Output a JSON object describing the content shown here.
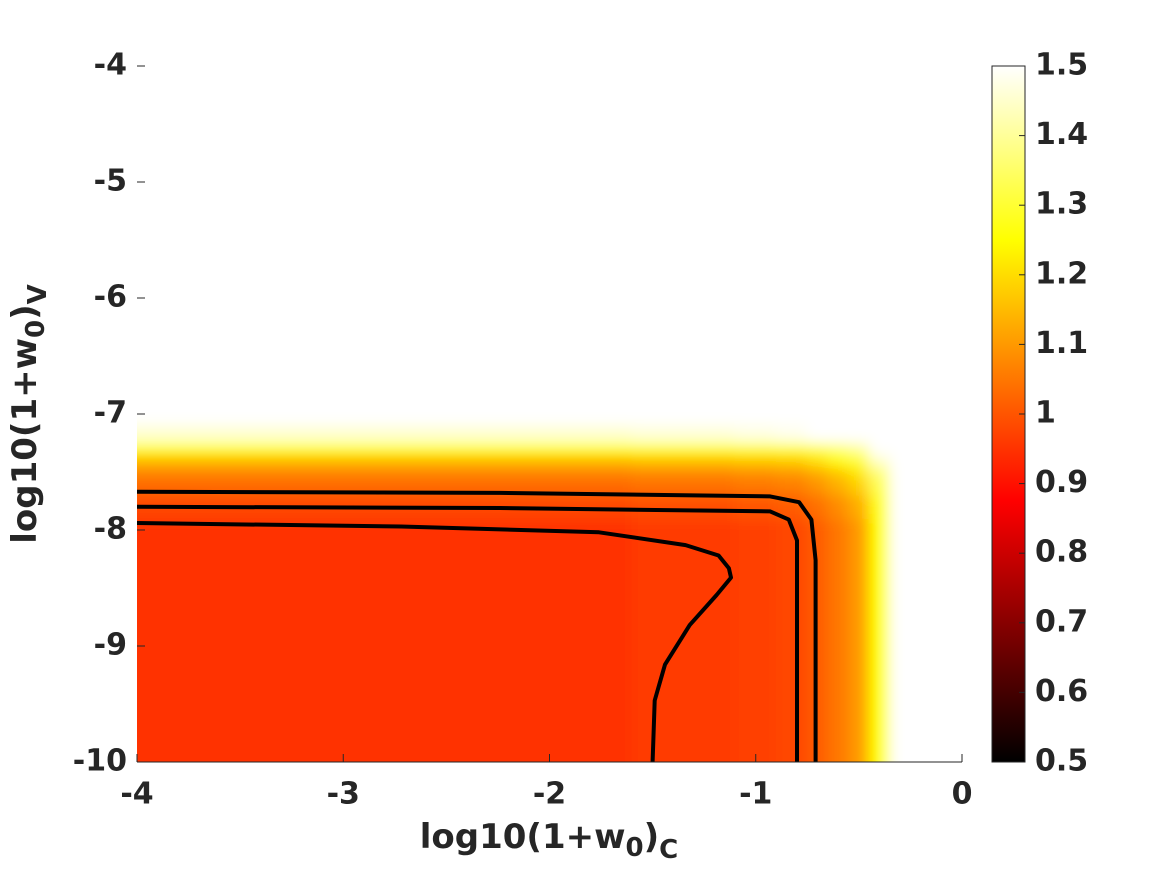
{
  "chart_data": {
    "type": "heatmap-contour",
    "xlabel": [
      "log10(1+w",
      "0",
      ")",
      "C"
    ],
    "ylabel": [
      "log10(1+w",
      "0",
      ")",
      "V"
    ],
    "xlim": [
      -4,
      0
    ],
    "xticks": [
      -4,
      -3,
      -2,
      -1,
      0
    ],
    "ylim": [
      -10,
      -4
    ],
    "yticks": [
      -10,
      -9,
      -8,
      -7,
      -6,
      -5,
      -4
    ],
    "colormap": "hot",
    "colorbar": {
      "lim": [
        0.5,
        1.5
      ],
      "ticks": [
        0.5,
        0.6,
        0.7,
        0.8,
        0.9,
        1,
        1.1,
        1.2,
        1.3,
        1.4,
        1.5
      ]
    },
    "field": {
      "x": [
        -4,
        -2,
        -1.2,
        -1,
        -0.8,
        -0.7,
        -0.6,
        -0.5,
        -0.4,
        -0.3,
        -0.2,
        0
      ],
      "y": [
        -10,
        -9,
        -8.5,
        -8,
        -7.8,
        -7.6,
        -7.5,
        -7.4,
        -7.3,
        -7.2,
        -7,
        -4
      ],
      "z": [
        [
          0.95,
          0.95,
          0.96,
          0.97,
          0.98,
          1.01,
          1.05,
          1.1,
          1.25,
          1.5,
          1.5,
          1.5
        ],
        [
          0.95,
          0.95,
          0.96,
          0.97,
          0.98,
          1.01,
          1.05,
          1.1,
          1.25,
          1.5,
          1.5,
          1.5
        ],
        [
          0.95,
          0.95,
          0.96,
          0.97,
          0.98,
          1.01,
          1.05,
          1.1,
          1.25,
          1.5,
          1.5,
          1.5
        ],
        [
          0.95,
          0.95,
          0.96,
          0.97,
          0.98,
          1.01,
          1.05,
          1.1,
          1.25,
          1.5,
          1.5,
          1.5
        ],
        [
          0.98,
          0.98,
          0.99,
          1.0,
          1.01,
          1.04,
          1.08,
          1.13,
          1.28,
          1.5,
          1.5,
          1.5
        ],
        [
          1.03,
          1.03,
          1.04,
          1.05,
          1.06,
          1.09,
          1.13,
          1.18,
          1.33,
          1.5,
          1.5,
          1.5
        ],
        [
          1.07,
          1.07,
          1.08,
          1.09,
          1.1,
          1.13,
          1.17,
          1.22,
          1.37,
          1.5,
          1.5,
          1.5
        ],
        [
          1.15,
          1.15,
          1.16,
          1.17,
          1.18,
          1.21,
          1.25,
          1.3,
          1.45,
          1.5,
          1.5,
          1.5
        ],
        [
          1.25,
          1.25,
          1.26,
          1.27,
          1.28,
          1.31,
          1.35,
          1.4,
          1.5,
          1.5,
          1.5,
          1.5
        ],
        [
          1.45,
          1.45,
          1.46,
          1.47,
          1.48,
          1.5,
          1.5,
          1.5,
          1.5,
          1.5,
          1.5,
          1.5
        ],
        [
          1.5,
          1.5,
          1.5,
          1.5,
          1.5,
          1.5,
          1.5,
          1.5,
          1.5,
          1.5,
          1.5,
          1.5
        ],
        [
          1.5,
          1.5,
          1.5,
          1.5,
          1.5,
          1.5,
          1.5,
          1.5,
          1.5,
          1.5,
          1.5,
          1.5
        ]
      ]
    },
    "contour_color": "#000000",
    "contours": [
      {
        "x": [
          -4,
          -2.24,
          -0.93,
          -0.79,
          -0.73,
          -0.71,
          -0.71
        ],
        "y": [
          -7.67,
          -7.68,
          -7.71,
          -7.76,
          -7.91,
          -8.26,
          -10
        ]
      },
      {
        "x": [
          -4,
          -2.24,
          -0.93,
          -0.84,
          -0.8,
          -0.8,
          -0.8
        ],
        "y": [
          -7.8,
          -7.81,
          -7.84,
          -7.91,
          -8.09,
          -8.6,
          -10
        ]
      },
      {
        "x": [
          -4,
          -2.72,
          -1.76,
          -1.34,
          -1.18,
          -1.13,
          -1.12,
          -1.19,
          -1.32,
          -1.44,
          -1.49,
          -1.5
        ],
        "y": [
          -7.94,
          -7.97,
          -8.02,
          -8.13,
          -8.22,
          -8.33,
          -8.41,
          -8.56,
          -8.82,
          -9.16,
          -9.47,
          -10
        ]
      }
    ]
  }
}
